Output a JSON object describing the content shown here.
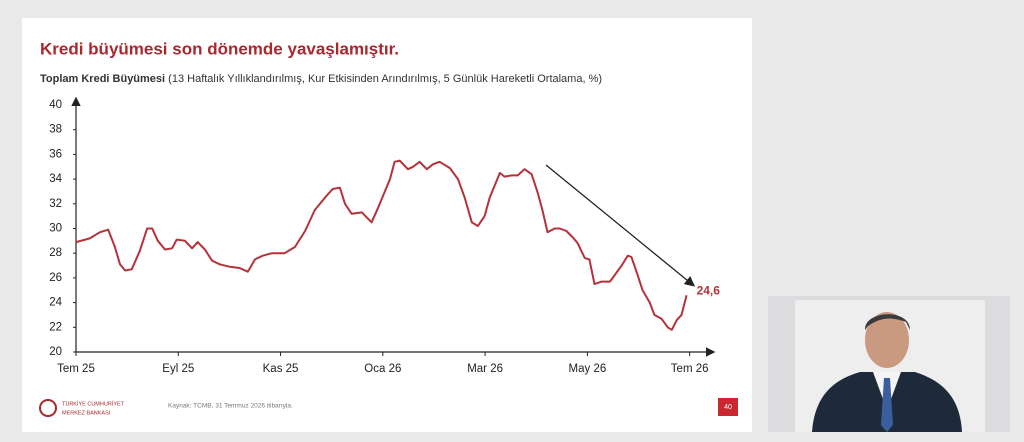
{
  "chart_data": {
    "type": "line",
    "title": "Kredi büyümesi son dönemde yavaşlamıştır.",
    "subtitle_bold": "Toplam Kredi Büyümesi",
    "subtitle": "(13 Haftalık Yıllıklandırılmış, Kur Etkisinden Arındırılmış, 5 Günlük Hareketli Ortalama, %)",
    "source": "Kaynak: TCMB, 31 Temmuz 2026 itibarıyla.",
    "page_number": "40",
    "logo": [
      "TÜRKİYE CUMHURİYET",
      "MERKEZ BANKASI"
    ],
    "color": "#b5323a",
    "x": [
      0,
      0.27,
      0.47,
      0.63,
      0.76,
      0.86,
      0.96,
      1.09,
      1.25,
      1.39,
      1.49,
      1.6,
      1.74,
      1.88,
      1.97,
      2.13,
      2.27,
      2.38,
      2.52,
      2.66,
      2.81,
      3.01,
      3.2,
      3.36,
      3.5,
      3.65,
      3.83,
      4.08,
      4.28,
      4.48,
      4.67,
      4.87,
      5.02,
      5.16,
      5.26,
      5.39,
      5.59,
      5.78,
      5.9,
      6.04,
      6.14,
      6.23,
      6.33,
      6.49,
      6.59,
      6.72,
      6.86,
      6.98,
      7.11,
      7.31,
      7.47,
      7.6,
      7.74,
      7.86,
      7.99,
      8.09,
      8.19,
      8.29,
      8.38,
      8.52,
      8.64,
      8.77,
      8.91,
      9.02,
      9.12,
      9.22,
      9.36,
      9.46,
      9.59,
      9.71,
      9.81,
      9.95,
      10.04,
      10.14,
      10.28,
      10.44,
      10.53,
      10.67,
      10.79,
      10.86,
      10.96,
      11.08,
      11.22,
      11.31,
      11.45,
      11.57,
      11.65,
      11.75,
      11.84,
      11.94
    ],
    "values": [
      28.9,
      29.2,
      29.7,
      29.9,
      28.5,
      27.1,
      26.6,
      26.7,
      28.2,
      30,
      30,
      29,
      28.3,
      28.4,
      29.1,
      29,
      28.4,
      28.9,
      28.3,
      27.4,
      27.1,
      26.9,
      26.8,
      26.5,
      27.5,
      27.8,
      28,
      28,
      28.5,
      29.8,
      31.5,
      32.5,
      33.2,
      33.3,
      32,
      31.2,
      31.3,
      30.5,
      31.6,
      33,
      34,
      35.4,
      35.5,
      34.8,
      35,
      35.4,
      34.8,
      35.2,
      35.4,
      34.9,
      34,
      32.5,
      30.5,
      30.2,
      31,
      32.5,
      33.5,
      34.5,
      34.2,
      34.3,
      34.3,
      34.8,
      34.4,
      33,
      31.5,
      29.7,
      30,
      30,
      29.8,
      29.3,
      28.8,
      27.6,
      27.5,
      25.5,
      25.7,
      25.7,
      26.2,
      27,
      27.8,
      27.7,
      26.5,
      25,
      24,
      23,
      22.7,
      22,
      21.8,
      22.6,
      23,
      24.6
    ],
    "value_labels": [
      null,
      null,
      null,
      null,
      null,
      null,
      null,
      null,
      null,
      null,
      null,
      null,
      null,
      null,
      null,
      null,
      null,
      null,
      null,
      null,
      null,
      null,
      null,
      null,
      null,
      null,
      null,
      null,
      null,
      null,
      null,
      null,
      null,
      null,
      null,
      null,
      null,
      null,
      null,
      null,
      null,
      null,
      null,
      null,
      null,
      null,
      null,
      null,
      null,
      null,
      null,
      null,
      null,
      null,
      null,
      null,
      null,
      null,
      null,
      null,
      null,
      null,
      null,
      null,
      null,
      null,
      null,
      null,
      null,
      null,
      null,
      null,
      null,
      null,
      null,
      null,
      null,
      null,
      null,
      null,
      null,
      null,
      null,
      null,
      null,
      null,
      null,
      null,
      null,
      "24,6"
    ],
    "xlim": [
      0,
      12.3
    ],
    "xticks": [
      {
        "value": 0,
        "label": "Tem 25"
      },
      {
        "value": 2,
        "label": "Eyl 25"
      },
      {
        "value": 4,
        "label": "Kas 25"
      },
      {
        "value": 6,
        "label": "Oca 26"
      },
      {
        "value": 8,
        "label": "Mar 26"
      },
      {
        "value": 10,
        "label": "May 26"
      },
      {
        "value": 12,
        "label": "Tem 26"
      }
    ],
    "ylim": [
      20,
      40
    ],
    "yticks": [
      20,
      22,
      24,
      26,
      28,
      30,
      32,
      34,
      36,
      38,
      40
    ],
    "grid": false
  }
}
